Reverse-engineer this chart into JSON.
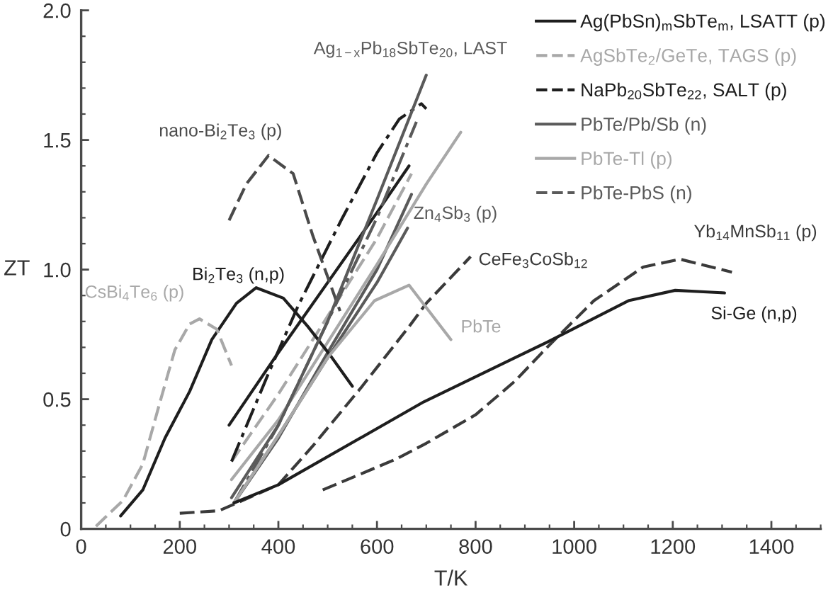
{
  "chart_data": {
    "type": "line",
    "xlabel": "T/K",
    "ylabel": "ZT",
    "xlim": [
      0,
      1500
    ],
    "ylim": [
      0,
      2.0
    ],
    "xticks": [
      0,
      {
        "value": 50,
        "label": null
      },
      {
        "value": 100,
        "label": null
      },
      {
        "value": 150,
        "label": null
      },
      200,
      {
        "value": 250,
        "label": null
      },
      {
        "value": 300,
        "label": null
      },
      {
        "value": 350,
        "label": null
      },
      400,
      {
        "value": 450,
        "label": null
      },
      {
        "value": 500,
        "label": null
      },
      {
        "value": 550,
        "label": null
      },
      600,
      {
        "value": 650,
        "label": null
      },
      {
        "value": 700,
        "label": null
      },
      {
        "value": 750,
        "label": null
      },
      800,
      {
        "value": 850,
        "label": null
      },
      {
        "value": 900,
        "label": null
      },
      {
        "value": 950,
        "label": null
      },
      1000,
      {
        "value": 1050,
        "label": null
      },
      {
        "value": 1100,
        "label": null
      },
      {
        "value": 1150,
        "label": null
      },
      1200,
      {
        "value": 1250,
        "label": null
      },
      {
        "value": 1300,
        "label": null
      },
      {
        "value": 1350,
        "label": null
      },
      1400,
      {
        "value": 1450,
        "label": null
      },
      {
        "value": 1500,
        "label": null
      }
    ],
    "yticks": [
      0,
      {
        "value": 0.1,
        "label": null
      },
      {
        "value": 0.2,
        "label": null
      },
      {
        "value": 0.3,
        "label": null
      },
      {
        "value": 0.4,
        "label": null
      },
      0.5,
      {
        "value": 0.6,
        "label": null
      },
      {
        "value": 0.7,
        "label": null
      },
      {
        "value": 0.8,
        "label": null
      },
      {
        "value": 0.9,
        "label": null
      },
      {
        "value": 1,
        "label": "1.0"
      },
      {
        "value": 1.1,
        "label": null
      },
      {
        "value": 1.2,
        "label": null
      },
      {
        "value": 1.3,
        "label": null
      },
      {
        "value": 1.4,
        "label": null
      },
      1.5,
      {
        "value": 1.6,
        "label": null
      },
      {
        "value": 1.7,
        "label": null
      },
      {
        "value": 1.8,
        "label": null
      },
      {
        "value": 1.9,
        "label": null
      },
      {
        "value": 2,
        "label": "2.0"
      }
    ],
    "legend": "top right",
    "series": [
      {
        "name": "Ag(PbSn)$_{m}$SbTe$_{m}$, LSATT (p)",
        "color": "#1e1e1e",
        "line_style": "solid",
        "x": [
          300,
          400,
          500,
          600,
          665
        ],
        "values": [
          0.4,
          0.68,
          0.95,
          1.22,
          1.4
        ]
      },
      {
        "name": "AgSbTe$_{2}$/GeTe, TAGS (p)",
        "color": "#a8a8a8",
        "line_style": "dashed",
        "x": [
          305,
          400,
          500,
          600,
          670
        ],
        "values": [
          0.26,
          0.52,
          0.82,
          1.12,
          1.37
        ]
      },
      {
        "name": "NaPb$_{20}$SbTe$_{22}$, SALT (p)",
        "color": "#1e1e1e",
        "line_style": "dashdot",
        "x": [
          305,
          380,
          440,
          530,
          600,
          645,
          690,
          700
        ],
        "values": [
          0.26,
          0.6,
          0.86,
          1.2,
          1.45,
          1.58,
          1.64,
          1.62
        ]
      },
      {
        "name": "PbTe/Pb/Sb (n)",
        "color": "#5a5a5a",
        "line_style": "solid",
        "x": [
          310,
          400,
          500,
          600,
          670
        ],
        "values": [
          0.1,
          0.35,
          0.68,
          1.0,
          1.29
        ]
      },
      {
        "name": "PbTe-Tl (p)",
        "color": "#a8a8a8",
        "line_style": "solid",
        "x": [
          305,
          400,
          500,
          600,
          700,
          770
        ],
        "values": [
          0.19,
          0.42,
          0.72,
          1.02,
          1.33,
          1.53
        ]
      },
      {
        "name": "PbTe-PbS (n)",
        "color": "#5a5a5a",
        "line_style": "dashdot",
        "x": [
          310,
          400,
          500,
          600,
          680
        ],
        "values": [
          0.1,
          0.4,
          0.8,
          1.2,
          1.57
        ]
      },
      {
        "name": "nano-Bi$_{2}$Te$_{3}$ (p)",
        "color": "#4a4a4a",
        "line_style": "dashed",
        "x": [
          300,
          335,
          380,
          430,
          470,
          525
        ],
        "values": [
          1.19,
          1.33,
          1.44,
          1.37,
          1.13,
          0.84
        ]
      },
      {
        "name": "Bi$_{2}$Te$_{3}$ (n,p)",
        "color": "#1e1e1e",
        "line_style": "solid",
        "x": [
          80,
          125,
          170,
          220,
          265,
          315,
          355,
          410,
          460,
          505,
          550
        ],
        "values": [
          0.05,
          0.15,
          0.35,
          0.53,
          0.73,
          0.87,
          0.93,
          0.89,
          0.78,
          0.67,
          0.55
        ]
      },
      {
        "name": "CsBi$_{4}$Te$_{6}$ (p)",
        "color": "#a8a8a8",
        "line_style": "dashed",
        "x": [
          30,
          85,
          125,
          160,
          190,
          220,
          240,
          275,
          305
        ],
        "values": [
          0.01,
          0.11,
          0.25,
          0.49,
          0.69,
          0.79,
          0.81,
          0.77,
          0.63
        ]
      },
      {
        "name": "Ag$_{1−x}$Pb$_{18}$SbTe$_{20}$, LAST",
        "color": "#5a5a5a",
        "line_style": "solid",
        "x": [
          305,
          400,
          500,
          600,
          700
        ],
        "values": [
          0.12,
          0.4,
          0.8,
          1.27,
          1.75
        ]
      },
      {
        "name": "Zn$_{4}$Sb$_{3}$ (p)",
        "color": "#5a5a5a",
        "line_style": "solid",
        "x": [
          310,
          400,
          500,
          600,
          662
        ],
        "values": [
          0.1,
          0.36,
          0.66,
          0.95,
          1.16
        ]
      },
      {
        "name": "CeFe$_{3}$CoSb$_{12}$",
        "color": "#3a3a3a",
        "line_style": "dashed",
        "x": [
          200,
          280,
          400,
          470,
          570,
          665,
          700,
          790
        ],
        "values": [
          0.06,
          0.07,
          0.17,
          0.32,
          0.55,
          0.78,
          0.87,
          1.05
        ]
      },
      {
        "name": "PbTe",
        "color": "#a8a8a8",
        "line_style": "solid",
        "x": [
          310,
          400,
          500,
          595,
          665,
          750
        ],
        "values": [
          0.1,
          0.36,
          0.66,
          0.88,
          0.94,
          0.73
        ]
      },
      {
        "name": "Yb$_{14}$MnSb$_{11}$ (p)",
        "color": "#3a3a3a",
        "line_style": "dashed",
        "x": [
          490,
          640,
          700,
          800,
          880,
          945,
          1040,
          1140,
          1215,
          1320
        ],
        "values": [
          0.15,
          0.27,
          0.33,
          0.44,
          0.57,
          0.7,
          0.88,
          1.01,
          1.04,
          0.99
        ]
      },
      {
        "name": "Si-Ge (n,p)",
        "color": "#1e1e1e",
        "line_style": "solid",
        "x": [
          310,
          400,
          695,
          945,
          1110,
          1205,
          1305
        ],
        "values": [
          0.1,
          0.17,
          0.49,
          0.72,
          0.88,
          0.92,
          0.91
        ]
      }
    ]
  }
}
